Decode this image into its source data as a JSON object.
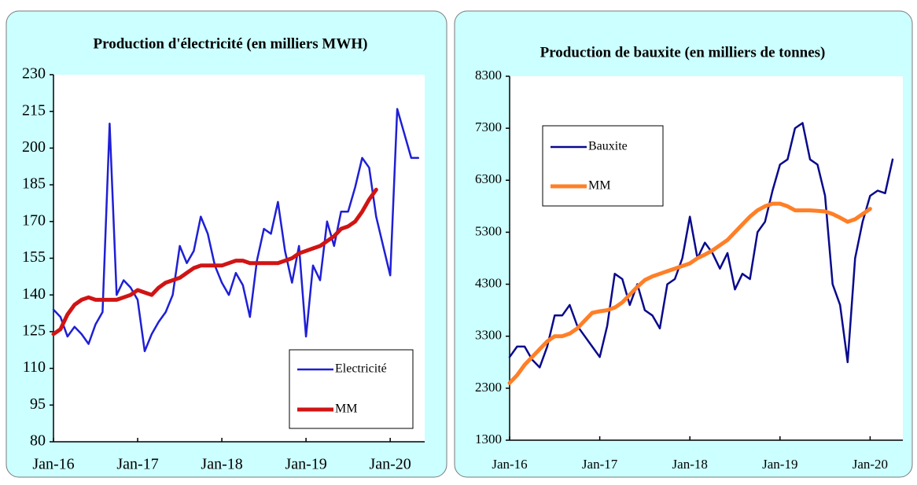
{
  "chart_data": [
    {
      "type": "line",
      "title": "Production d'électricité (en milliers MWH)",
      "categories": [
        "Jan-16",
        null,
        null,
        null,
        null,
        null,
        null,
        null,
        null,
        null,
        null,
        null,
        "Jan-17",
        null,
        null,
        null,
        null,
        null,
        null,
        null,
        null,
        null,
        null,
        null,
        "Jan-18",
        null,
        null,
        null,
        null,
        null,
        null,
        null,
        null,
        null,
        null,
        null,
        "Jan-19",
        null,
        null,
        null,
        null,
        null,
        null,
        null,
        null,
        null,
        null,
        null,
        "Jan-20",
        null,
        null,
        null,
        null
      ],
      "series": [
        {
          "name": "Electricité",
          "color": "#1f1fd6",
          "values": [
            134,
            131,
            123,
            127,
            124,
            120,
            128,
            133,
            210,
            140,
            146,
            143,
            138,
            117,
            124,
            129,
            133,
            140,
            160,
            153,
            158,
            172,
            165,
            152,
            145,
            140,
            149,
            144,
            131,
            154,
            167,
            165,
            178,
            158,
            145,
            160,
            123,
            152,
            146,
            170,
            160,
            174,
            174,
            184,
            196,
            192,
            172,
            160,
            148,
            216,
            206,
            196,
            196
          ]
        },
        {
          "name": "MM",
          "color": "#d01414",
          "values": [
            124,
            126,
            132,
            136,
            138,
            139,
            138,
            138,
            138,
            138,
            139,
            140,
            142,
            141,
            140,
            143,
            145,
            146,
            147,
            149,
            151,
            152,
            152,
            152,
            152,
            153,
            154,
            154,
            153,
            153,
            153,
            153,
            153,
            154,
            155,
            157,
            158,
            159,
            160,
            162,
            164,
            167,
            168,
            170,
            174,
            179,
            183,
            null,
            null,
            null,
            null,
            null,
            null
          ]
        }
      ],
      "ylim": [
        80,
        230
      ],
      "yticks": [
        80,
        95,
        110,
        125,
        140,
        155,
        170,
        185,
        200,
        215,
        230
      ]
    },
    {
      "type": "line",
      "title": "Production de bauxite (en milliers de tonnes)",
      "categories": [
        "Jan-16",
        null,
        null,
        null,
        null,
        null,
        null,
        null,
        null,
        null,
        null,
        null,
        "Jan-17",
        null,
        null,
        null,
        null,
        null,
        null,
        null,
        null,
        null,
        null,
        null,
        "Jan-18",
        null,
        null,
        null,
        null,
        null,
        null,
        null,
        null,
        null,
        null,
        null,
        "Jan-19",
        null,
        null,
        null,
        null,
        null,
        null,
        null,
        null,
        null,
        null,
        null,
        "Jan-20",
        null,
        null,
        null
      ],
      "series": [
        {
          "name": "Bauxite",
          "color": "#0a0a8c",
          "values": [
            2900,
            3100,
            3100,
            2850,
            2700,
            3100,
            3700,
            3700,
            3900,
            3500,
            3300,
            3100,
            2900,
            3500,
            4500,
            4400,
            3900,
            4300,
            3800,
            3700,
            3450,
            4300,
            4400,
            4800,
            5600,
            4800,
            5100,
            4900,
            4600,
            4900,
            4200,
            4500,
            4400,
            5300,
            5500,
            6100,
            6600,
            6700,
            7300,
            7400,
            6700,
            6600,
            6000,
            4300,
            3900,
            2800,
            4800,
            5500,
            6000,
            6100,
            6050,
            6700
          ]
        },
        {
          "name": "MM",
          "color": "#ff7f27",
          "values": [
            2400,
            2550,
            2750,
            2900,
            3050,
            3200,
            3300,
            3300,
            3350,
            3450,
            3600,
            3750,
            3780,
            3800,
            3850,
            3950,
            4100,
            4250,
            4380,
            4450,
            4500,
            4550,
            4600,
            4650,
            4700,
            4800,
            4870,
            4950,
            5050,
            5150,
            5300,
            5450,
            5600,
            5720,
            5800,
            5850,
            5850,
            5800,
            5720,
            5720,
            5720,
            5710,
            5700,
            5650,
            5580,
            5500,
            5550,
            5650,
            5750,
            null,
            null,
            null
          ]
        }
      ],
      "ylim": [
        1300,
        8300
      ],
      "yticks": [
        1300,
        2300,
        3300,
        4300,
        5300,
        6300,
        7300,
        8300
      ]
    }
  ]
}
